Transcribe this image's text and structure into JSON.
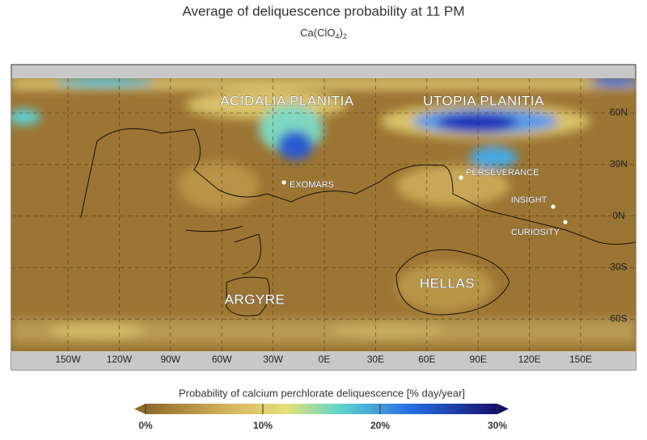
{
  "header": {
    "title": "Average of deliquescence probability at 11 PM",
    "formula": [
      "Ca(ClO",
      "4",
      ")",
      "2"
    ]
  },
  "map": {
    "lon_labels": [
      "150W",
      "120W",
      "90W",
      "60W",
      "30W",
      "0E",
      "30E",
      "60E",
      "90E",
      "120E",
      "150E"
    ],
    "lat_labels": [
      "60N",
      "30N",
      "0N",
      "30S",
      "60S"
    ],
    "regions": [
      "ACIDALIA PLANITIA",
      "UTOPIA PLANITIA",
      "ARGYRE",
      "HELLAS"
    ],
    "sites": [
      "EXOMARS",
      "PERSEVERANCE",
      "INSIGHT",
      "CURIOSITY"
    ]
  },
  "colorbar": {
    "label": "Probability of calcium perchlorate deliquescence [% day/year]",
    "lim": [
      0,
      30
    ],
    "ticks": [
      {
        "value": 0,
        "label": "0%"
      },
      {
        "value": 10,
        "label": "10%"
      },
      {
        "value": 20,
        "label": "20%"
      },
      {
        "value": 30,
        "label": "30%"
      }
    ]
  }
}
